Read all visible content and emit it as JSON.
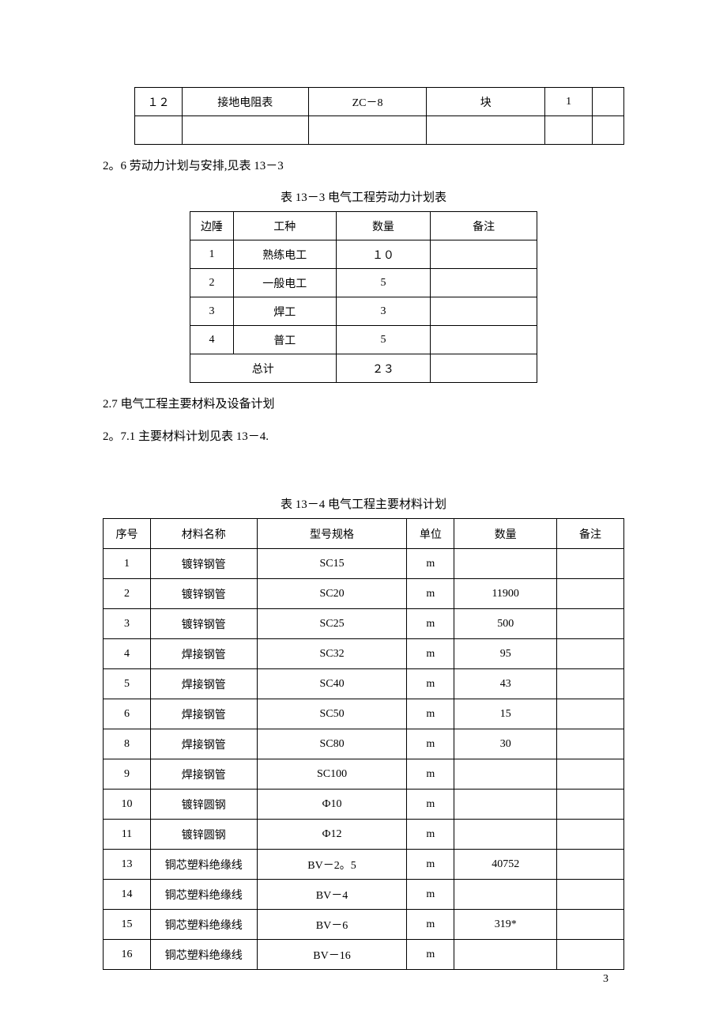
{
  "table1": {
    "rows": [
      [
        "１２",
        "接地电阻表",
        "ZC－8",
        "块",
        "1",
        ""
      ],
      [
        "",
        "",
        "",
        "",
        "",
        ""
      ]
    ]
  },
  "para1": "2。6 劳动力计划与安排,见表 13－3",
  "caption2": "表 13－3 电气工程劳动力计划表",
  "table2": {
    "headers": [
      "边陲",
      "工种",
      "数量",
      "备注"
    ],
    "rows": [
      [
        "1",
        "熟练电工",
        "１０",
        ""
      ],
      [
        "2",
        "一般电工",
        "5",
        ""
      ],
      [
        "3",
        "焊工",
        "3",
        ""
      ],
      [
        "4",
        "普工",
        "5",
        ""
      ]
    ],
    "total_label": "总计",
    "total_value": "２３"
  },
  "para2": "2.7 电气工程主要材料及设备计划",
  "para3": "2。7.1 主要材料计划见表 13－4.",
  "caption3": "表 13－4 电气工程主要材料计划",
  "table3": {
    "headers": [
      "序号",
      "材料名称",
      "型号规格",
      "单位",
      "数量",
      "备注"
    ],
    "rows": [
      [
        "1",
        "镀锌钢管",
        "SC15",
        "m",
        "",
        ""
      ],
      [
        "2",
        "镀锌钢管",
        "SC20",
        "m",
        "11900",
        ""
      ],
      [
        "3",
        "镀锌钢管",
        "SC25",
        "m",
        "500",
        ""
      ],
      [
        "4",
        "焊接钢管",
        "SC32",
        "m",
        "95",
        ""
      ],
      [
        "5",
        "焊接钢管",
        "SC40",
        "m",
        "43",
        ""
      ],
      [
        "6",
        "焊接钢管",
        "SC50",
        "m",
        "15",
        ""
      ],
      [
        "8",
        "焊接钢管",
        "SC80",
        "m",
        "30",
        ""
      ],
      [
        "9",
        "焊接钢管",
        "SC100",
        "m",
        "",
        ""
      ],
      [
        "10",
        "镀锌圆钢",
        "Ф10",
        "m",
        "",
        ""
      ],
      [
        "11",
        "镀锌圆钢",
        "Ф12",
        "m",
        "",
        ""
      ],
      [
        "13",
        "铜芯塑料绝缘线",
        "BV－2。5",
        "m",
        "40752",
        ""
      ],
      [
        "14",
        "铜芯塑料绝缘线",
        "BV－4",
        "m",
        "",
        ""
      ],
      [
        "15",
        "铜芯塑料绝缘线",
        "BV－6",
        "m",
        "319*",
        ""
      ],
      [
        "16",
        "铜芯塑料绝缘线",
        "BV－16",
        "m",
        "",
        ""
      ]
    ]
  },
  "page_number": "3"
}
